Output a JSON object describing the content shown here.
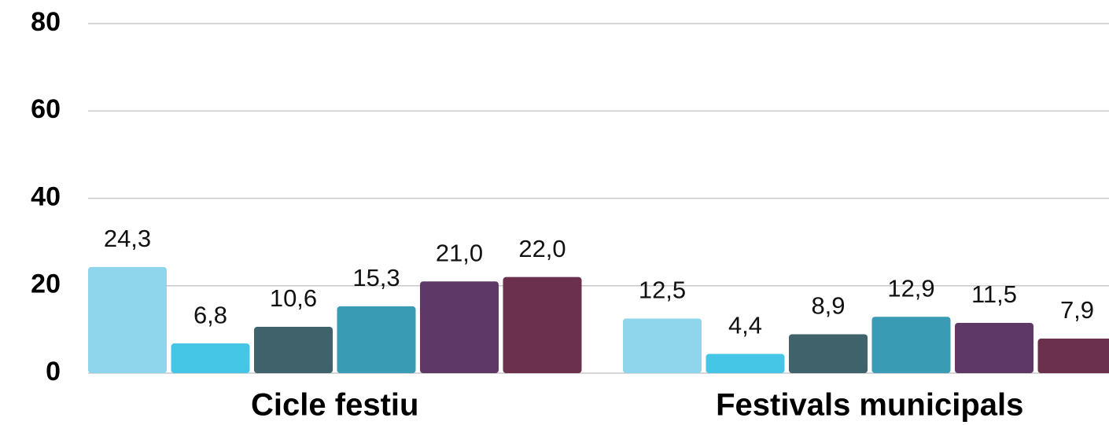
{
  "chart_data": {
    "type": "bar",
    "categories": [
      "Cicle festiu",
      "Festivals municipals"
    ],
    "series": [
      {
        "color": "#8fd6ec",
        "values": [
          24.3,
          12.5
        ],
        "value_labels": [
          "24,3",
          "12,5"
        ]
      },
      {
        "color": "#45c6e6",
        "values": [
          6.8,
          4.4
        ],
        "value_labels": [
          "6,8",
          "4,4"
        ]
      },
      {
        "color": "#3f626b",
        "values": [
          10.6,
          8.9
        ],
        "value_labels": [
          "10,6",
          "8,9"
        ]
      },
      {
        "color": "#3a9bb4",
        "values": [
          15.3,
          12.9
        ],
        "value_labels": [
          "15,3",
          "12,9"
        ]
      },
      {
        "color": "#5e3866",
        "values": [
          21.0,
          11.5
        ],
        "value_labels": [
          "21,0",
          "11,5"
        ]
      },
      {
        "color": "#6b304b",
        "values": [
          22.0,
          7.9
        ],
        "value_labels": [
          "22,0",
          "7,9"
        ]
      }
    ],
    "ylim": [
      0,
      80
    ],
    "yticks": [
      0,
      20,
      40,
      60,
      80
    ],
    "grid": true
  }
}
